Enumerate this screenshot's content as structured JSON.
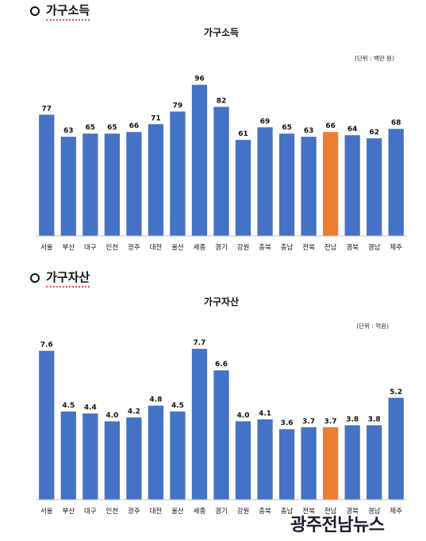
{
  "sections": [
    {
      "heading": "가구소득"
    },
    {
      "heading": "가구자산"
    }
  ],
  "colors": {
    "bar": "#4472c4",
    "highlight": "#ed7d31",
    "axis": "#bfbfbf"
  },
  "chart_data": [
    {
      "type": "bar",
      "title": "가구소득",
      "unit": "(단위 : 백만 원)",
      "categories": [
        "서울",
        "부산",
        "대구",
        "인천",
        "광주",
        "대전",
        "울산",
        "세종",
        "경기",
        "강원",
        "충북",
        "충남",
        "전북",
        "전남",
        "경북",
        "경남",
        "제주"
      ],
      "values": [
        77,
        63,
        65,
        65,
        66,
        71,
        79,
        96,
        82,
        61,
        69,
        65,
        63,
        66,
        64,
        62,
        68
      ],
      "value_labels": [
        "77",
        "63",
        "65",
        "65",
        "66",
        "71",
        "79",
        "96",
        "82",
        "61",
        "69",
        "65",
        "63",
        "66",
        "64",
        "62",
        "68"
      ],
      "highlight": "전남",
      "ylim": [
        0,
        110
      ],
      "grid": false,
      "legend": "none"
    },
    {
      "type": "bar",
      "title": "가구자산",
      "unit": "(단위 : 억원)",
      "categories": [
        "서울",
        "부산",
        "대구",
        "인천",
        "광주",
        "대전",
        "울산",
        "세종",
        "경기",
        "강원",
        "충북",
        "충남",
        "전북",
        "전남",
        "경북",
        "경남",
        "제주"
      ],
      "values": [
        7.6,
        4.5,
        4.4,
        4.0,
        4.2,
        4.8,
        4.5,
        7.7,
        6.6,
        4.0,
        4.1,
        3.6,
        3.7,
        3.7,
        3.8,
        3.8,
        5.2
      ],
      "value_labels": [
        "7.6",
        "4.5",
        "4.4",
        "4.0",
        "4.2",
        "4.8",
        "4.5",
        "7.7",
        "6.6",
        "4.0",
        "4.1",
        "3.6",
        "3.7",
        "3.7",
        "3.8",
        "3.8",
        "5.2"
      ],
      "highlight": "전남",
      "ylim": [
        0,
        8.84
      ],
      "grid": false,
      "legend": "none"
    }
  ],
  "watermark": {
    "text": "광주전남뉴스"
  }
}
